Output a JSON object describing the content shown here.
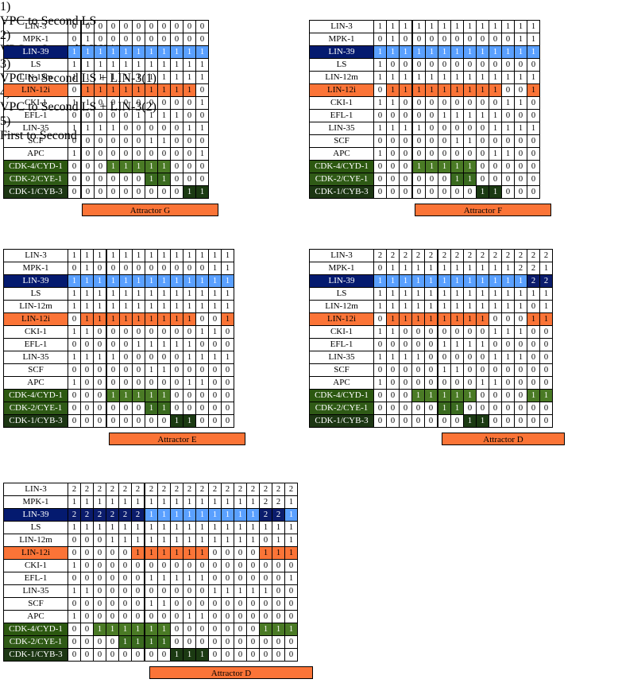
{
  "row_labels": [
    "LIN-3",
    "MPK-1",
    "LIN-39",
    "LS",
    "LIN-12m",
    "LIN-12i",
    "CKI-1",
    "EFL-1",
    "LIN-35",
    "SCF",
    "APC",
    "CDK-4/CYD-1",
    "CDK-2/CYE-1",
    "CDK-1/CYB-3"
  ],
  "colors": {
    "blue": "#4f94ff",
    "navy": "#041a6f",
    "orange": "#fb7437",
    "green": "#4a7a25",
    "dark_green": "#1b3a12"
  },
  "panels": [
    {
      "number": "1)",
      "title": "VPC to Second LS",
      "attractor": "Attractor G",
      "rows": [
        [
          "0",
          "0",
          "0",
          "0",
          "0",
          "0",
          "0",
          "0",
          "0",
          "0",
          "0"
        ],
        [
          "0",
          "1",
          "0",
          "0",
          "0",
          "0",
          "0",
          "0",
          "0",
          "0",
          "0"
        ],
        [
          "1",
          "1",
          "1",
          "1",
          "1",
          "1",
          "1",
          "1",
          "1",
          "1",
          "1"
        ],
        [
          "1",
          "1",
          "1",
          "1",
          "1",
          "1",
          "1",
          "1",
          "1",
          "1",
          "1"
        ],
        [
          "1",
          "1",
          "1",
          "1",
          "1",
          "1",
          "1",
          "1",
          "1",
          "1",
          "1"
        ],
        [
          "0",
          "1",
          "1",
          "1",
          "1",
          "1",
          "1",
          "1",
          "1",
          "1",
          "0"
        ],
        [
          "1",
          "1",
          "0",
          "0",
          "0",
          "0",
          "0",
          "0",
          "0",
          "0",
          "1"
        ],
        [
          "0",
          "0",
          "0",
          "0",
          "0",
          "1",
          "1",
          "1",
          "1",
          "0",
          "0"
        ],
        [
          "1",
          "1",
          "1",
          "1",
          "0",
          "0",
          "0",
          "0",
          "0",
          "1",
          "1"
        ],
        [
          "0",
          "0",
          "0",
          "0",
          "0",
          "0",
          "1",
          "1",
          "0",
          "0",
          "0"
        ],
        [
          "1",
          "0",
          "0",
          "0",
          "0",
          "0",
          "0",
          "0",
          "0",
          "0",
          "1"
        ],
        [
          "0",
          "0",
          "0",
          "1",
          "1",
          "1",
          "1",
          "1",
          "0",
          "0",
          "0"
        ],
        [
          "0",
          "0",
          "0",
          "0",
          "0",
          "0",
          "1",
          "1",
          "0",
          "0",
          "0"
        ],
        [
          "0",
          "0",
          "0",
          "0",
          "0",
          "0",
          "0",
          "0",
          "0",
          "1",
          "1"
        ]
      ]
    },
    {
      "number": "2)",
      "title": "VPC to Second LIN3(1)",
      "attractor": "Attractor F",
      "rows": [
        [
          "1",
          "1",
          "1",
          "1",
          "1",
          "1",
          "1",
          "1",
          "1",
          "1",
          "1",
          "1",
          "1"
        ],
        [
          "0",
          "1",
          "0",
          "0",
          "0",
          "0",
          "0",
          "0",
          "0",
          "0",
          "0",
          "1",
          "1"
        ],
        [
          "1",
          "1",
          "1",
          "1",
          "1",
          "1",
          "1",
          "1",
          "1",
          "1",
          "1",
          "1",
          "1"
        ],
        [
          "1",
          "0",
          "0",
          "0",
          "0",
          "0",
          "0",
          "0",
          "0",
          "0",
          "0",
          "0",
          "0"
        ],
        [
          "1",
          "1",
          "1",
          "1",
          "1",
          "1",
          "1",
          "1",
          "1",
          "1",
          "1",
          "1",
          "1"
        ],
        [
          "0",
          "1",
          "1",
          "1",
          "1",
          "1",
          "1",
          "1",
          "1",
          "1",
          "0",
          "0",
          "1"
        ],
        [
          "1",
          "1",
          "0",
          "0",
          "0",
          "0",
          "0",
          "0",
          "0",
          "0",
          "1",
          "1",
          "0"
        ],
        [
          "0",
          "0",
          "0",
          "0",
          "0",
          "1",
          "1",
          "1",
          "1",
          "1",
          "0",
          "0",
          "0"
        ],
        [
          "1",
          "1",
          "1",
          "1",
          "0",
          "0",
          "0",
          "0",
          "0",
          "1",
          "1",
          "1",
          "1"
        ],
        [
          "0",
          "0",
          "0",
          "0",
          "0",
          "0",
          "1",
          "1",
          "0",
          "0",
          "0",
          "0",
          "0"
        ],
        [
          "1",
          "0",
          "0",
          "0",
          "0",
          "0",
          "0",
          "0",
          "0",
          "1",
          "1",
          "0",
          "0"
        ],
        [
          "0",
          "0",
          "0",
          "1",
          "1",
          "1",
          "1",
          "1",
          "0",
          "0",
          "0",
          "0",
          "0"
        ],
        [
          "0",
          "0",
          "0",
          "0",
          "0",
          "0",
          "1",
          "1",
          "0",
          "0",
          "0",
          "0",
          "0"
        ],
        [
          "0",
          "0",
          "0",
          "0",
          "0",
          "0",
          "0",
          "0",
          "1",
          "1",
          "0",
          "0",
          "0"
        ]
      ]
    },
    {
      "number": "3)",
      "title": "VPC to Second LS + LIN-3(1)",
      "attractor": "Attractor E",
      "rows": [
        [
          "1",
          "1",
          "1",
          "1",
          "1",
          "1",
          "1",
          "1",
          "1",
          "1",
          "1",
          "1",
          "1"
        ],
        [
          "0",
          "1",
          "0",
          "0",
          "0",
          "0",
          "0",
          "0",
          "0",
          "0",
          "0",
          "1",
          "1"
        ],
        [
          "1",
          "1",
          "1",
          "1",
          "1",
          "1",
          "1",
          "1",
          "1",
          "1",
          "1",
          "1",
          "1"
        ],
        [
          "1",
          "1",
          "1",
          "1",
          "1",
          "1",
          "1",
          "1",
          "1",
          "1",
          "1",
          "1",
          "1"
        ],
        [
          "1",
          "1",
          "1",
          "1",
          "1",
          "1",
          "1",
          "1",
          "1",
          "1",
          "1",
          "1",
          "1"
        ],
        [
          "0",
          "1",
          "1",
          "1",
          "1",
          "1",
          "1",
          "1",
          "1",
          "1",
          "0",
          "0",
          "1"
        ],
        [
          "1",
          "1",
          "0",
          "0",
          "0",
          "0",
          "0",
          "0",
          "0",
          "0",
          "1",
          "1",
          "0"
        ],
        [
          "0",
          "0",
          "0",
          "0",
          "0",
          "1",
          "1",
          "1",
          "1",
          "1",
          "0",
          "0",
          "0"
        ],
        [
          "1",
          "1",
          "1",
          "1",
          "0",
          "0",
          "0",
          "0",
          "0",
          "1",
          "1",
          "1",
          "1"
        ],
        [
          "0",
          "0",
          "0",
          "0",
          "0",
          "0",
          "1",
          "1",
          "0",
          "0",
          "0",
          "0",
          "0"
        ],
        [
          "1",
          "0",
          "0",
          "0",
          "0",
          "0",
          "0",
          "0",
          "0",
          "1",
          "1",
          "0",
          "0"
        ],
        [
          "0",
          "0",
          "0",
          "1",
          "1",
          "1",
          "1",
          "1",
          "0",
          "0",
          "0",
          "0",
          "0"
        ],
        [
          "0",
          "0",
          "0",
          "0",
          "0",
          "0",
          "1",
          "1",
          "0",
          "0",
          "0",
          "0",
          "0"
        ],
        [
          "0",
          "0",
          "0",
          "0",
          "0",
          "0",
          "0",
          "0",
          "1",
          "1",
          "0",
          "0",
          "0"
        ]
      ]
    },
    {
      "number": "4)",
      "title": "VPC to Second LS + LIN-3(2)",
      "attractor": "Attractor D",
      "rows": [
        [
          "2",
          "2",
          "2",
          "2",
          "2",
          "2",
          "2",
          "2",
          "2",
          "2",
          "2",
          "2",
          "2",
          "2"
        ],
        [
          "0",
          "1",
          "1",
          "1",
          "1",
          "1",
          "1",
          "1",
          "1",
          "1",
          "1",
          "2",
          "2",
          "1"
        ],
        [
          "1",
          "1",
          "1",
          "1",
          "1",
          "1",
          "1",
          "1",
          "1",
          "1",
          "1",
          "1",
          "2",
          "2"
        ],
        [
          "1",
          "1",
          "1",
          "1",
          "1",
          "1",
          "1",
          "1",
          "1",
          "1",
          "1",
          "1",
          "1",
          "1"
        ],
        [
          "1",
          "1",
          "1",
          "1",
          "1",
          "1",
          "1",
          "1",
          "1",
          "1",
          "1",
          "1",
          "0",
          "1"
        ],
        [
          "0",
          "1",
          "1",
          "1",
          "1",
          "1",
          "1",
          "1",
          "1",
          "0",
          "0",
          "0",
          "1",
          "1"
        ],
        [
          "1",
          "1",
          "0",
          "0",
          "0",
          "0",
          "0",
          "0",
          "0",
          "1",
          "1",
          "1",
          "0",
          "0"
        ],
        [
          "0",
          "0",
          "0",
          "0",
          "0",
          "1",
          "1",
          "1",
          "1",
          "0",
          "0",
          "0",
          "0",
          "0"
        ],
        [
          "1",
          "1",
          "1",
          "1",
          "0",
          "0",
          "0",
          "0",
          "0",
          "1",
          "1",
          "1",
          "0",
          "0"
        ],
        [
          "0",
          "0",
          "0",
          "0",
          "0",
          "1",
          "1",
          "0",
          "0",
          "0",
          "0",
          "0",
          "0",
          "0"
        ],
        [
          "1",
          "0",
          "0",
          "0",
          "0",
          "0",
          "0",
          "0",
          "1",
          "1",
          "0",
          "0",
          "0",
          "0"
        ],
        [
          "0",
          "0",
          "0",
          "1",
          "1",
          "1",
          "1",
          "1",
          "0",
          "0",
          "0",
          "0",
          "1",
          "1"
        ],
        [
          "0",
          "0",
          "0",
          "0",
          "0",
          "1",
          "1",
          "0",
          "0",
          "0",
          "0",
          "0",
          "0",
          "0"
        ],
        [
          "0",
          "0",
          "0",
          "0",
          "0",
          "0",
          "0",
          "1",
          "1",
          "0",
          "0",
          "0",
          "0",
          "0"
        ]
      ]
    },
    {
      "number": "5)",
      "title": "First to Second",
      "attractor": "Attractor D",
      "rows": [
        [
          "2",
          "2",
          "2",
          "2",
          "2",
          "2",
          "2",
          "2",
          "2",
          "2",
          "2",
          "2",
          "2",
          "2",
          "2",
          "2",
          "2",
          "2"
        ],
        [
          "1",
          "1",
          "1",
          "1",
          "1",
          "1",
          "1",
          "1",
          "1",
          "1",
          "1",
          "1",
          "1",
          "1",
          "1",
          "2",
          "2",
          "1"
        ],
        [
          "2",
          "2",
          "2",
          "2",
          "2",
          "2",
          "1",
          "1",
          "1",
          "1",
          "1",
          "1",
          "1",
          "1",
          "1",
          "2",
          "2",
          "1"
        ],
        [
          "1",
          "1",
          "1",
          "1",
          "1",
          "1",
          "1",
          "1",
          "1",
          "1",
          "1",
          "1",
          "1",
          "1",
          "1",
          "1",
          "1",
          "1"
        ],
        [
          "0",
          "0",
          "0",
          "1",
          "1",
          "1",
          "1",
          "1",
          "1",
          "1",
          "1",
          "1",
          "1",
          "1",
          "1",
          "0",
          "1",
          "1"
        ],
        [
          "0",
          "0",
          "0",
          "0",
          "0",
          "1",
          "1",
          "1",
          "1",
          "1",
          "1",
          "0",
          "0",
          "0",
          "0",
          "1",
          "1",
          "1"
        ],
        [
          "1",
          "0",
          "0",
          "0",
          "0",
          "0",
          "0",
          "0",
          "0",
          "0",
          "0",
          "0",
          "0",
          "0",
          "0",
          "0",
          "0",
          "0"
        ],
        [
          "0",
          "0",
          "0",
          "0",
          "0",
          "0",
          "1",
          "1",
          "1",
          "1",
          "1",
          "0",
          "0",
          "0",
          "0",
          "0",
          "0",
          "1"
        ],
        [
          "1",
          "1",
          "0",
          "0",
          "0",
          "0",
          "0",
          "0",
          "0",
          "0",
          "0",
          "1",
          "1",
          "1",
          "1",
          "1",
          "0",
          "0"
        ],
        [
          "0",
          "0",
          "0",
          "0",
          "0",
          "0",
          "1",
          "1",
          "0",
          "0",
          "0",
          "0",
          "0",
          "0",
          "0",
          "0",
          "0",
          "0"
        ],
        [
          "1",
          "0",
          "0",
          "0",
          "0",
          "0",
          "0",
          "0",
          "0",
          "1",
          "1",
          "0",
          "0",
          "0",
          "0",
          "0",
          "0",
          "0"
        ],
        [
          "0",
          "0",
          "1",
          "1",
          "1",
          "1",
          "1",
          "1",
          "0",
          "0",
          "0",
          "0",
          "0",
          "0",
          "0",
          "1",
          "1",
          "1"
        ],
        [
          "0",
          "0",
          "0",
          "0",
          "1",
          "1",
          "1",
          "1",
          "0",
          "0",
          "0",
          "0",
          "0",
          "0",
          "0",
          "0",
          "0",
          "0"
        ],
        [
          "0",
          "0",
          "0",
          "0",
          "0",
          "0",
          "0",
          "0",
          "1",
          "1",
          "1",
          "0",
          "0",
          "0",
          "0",
          "0",
          "0",
          "0"
        ]
      ]
    }
  ]
}
